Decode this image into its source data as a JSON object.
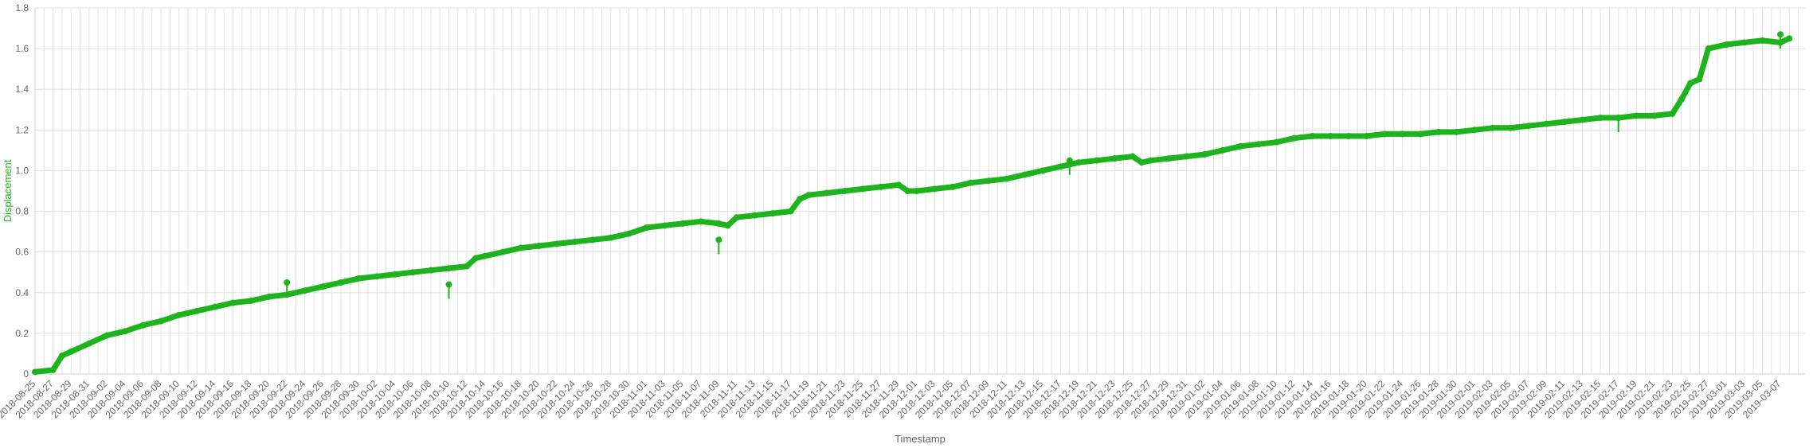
{
  "chart_data": {
    "type": "line",
    "title": "",
    "xlabel": "Timestamp",
    "ylabel": "Displacement",
    "ylim": [
      0,
      1.8
    ],
    "y_ticks": [
      "0",
      "0.2",
      "0.4",
      "0.6",
      "0.8",
      "1.0",
      "1.2",
      "1.4",
      "1.6",
      "1.8"
    ],
    "x_tick_labels": [
      "2018-08-25",
      "2018-08-27",
      "2018-08-29",
      "2018-08-31",
      "2018-09-02",
      "2018-09-04",
      "2018-09-06",
      "2018-09-08",
      "2018-09-10",
      "2018-09-12",
      "2018-09-14",
      "2018-09-16",
      "2018-09-18",
      "2018-09-20",
      "2018-09-22",
      "2018-09-24",
      "2018-09-26",
      "2018-09-28",
      "2018-09-30",
      "2018-10-02",
      "2018-10-04",
      "2018-10-06",
      "2018-10-08",
      "2018-10-10",
      "2018-10-12",
      "2018-10-14",
      "2018-10-16",
      "2018-10-18",
      "2018-10-20",
      "2018-10-22",
      "2018-10-24",
      "2018-10-26",
      "2018-10-28",
      "2018-10-30",
      "2018-11-01",
      "2018-11-03",
      "2018-11-05",
      "2018-11-07",
      "2018-11-09",
      "2018-11-11",
      "2018-11-13",
      "2018-11-15",
      "2018-11-17",
      "2018-11-19",
      "2018-11-21",
      "2018-11-23",
      "2018-11-25",
      "2018-11-27",
      "2018-11-29",
      "2018-12-01",
      "2018-12-03",
      "2018-12-05",
      "2018-12-07",
      "2018-12-09",
      "2018-12-11",
      "2018-12-13",
      "2018-12-15",
      "2018-12-17",
      "2018-12-19",
      "2018-12-21",
      "2018-12-23",
      "2018-12-25",
      "2018-12-27",
      "2018-12-29",
      "2018-12-31",
      "2019-01-02",
      "2019-01-04",
      "2019-01-06",
      "2019-01-08",
      "2019-01-10",
      "2019-01-12",
      "2019-01-14",
      "2019-01-16",
      "2019-01-18",
      "2019-01-20",
      "2019-01-22",
      "2019-01-24",
      "2019-01-26",
      "2019-01-28",
      "2019-01-30",
      "2019-02-01",
      "2019-02-03",
      "2019-02-05",
      "2019-02-07",
      "2019-02-09",
      "2019-02-11",
      "2019-02-13",
      "2019-02-15",
      "2019-02-17",
      "2019-02-19",
      "2019-02-21",
      "2019-02-23",
      "2019-02-25",
      "2019-02-27",
      "2019-03-01",
      "2019-03-03",
      "2019-03-05",
      "2019-03-07"
    ],
    "grid": true,
    "legend": "none",
    "series": [
      {
        "color": "#1db31d",
        "x": [
          "2018-08-25",
          "2018-08-27",
          "2018-08-28",
          "2018-08-29",
          "2018-08-31",
          "2018-09-02",
          "2018-09-04",
          "2018-09-06",
          "2018-09-08",
          "2018-09-10",
          "2018-09-12",
          "2018-09-14",
          "2018-09-16",
          "2018-09-18",
          "2018-09-20",
          "2018-09-22",
          "2018-09-24",
          "2018-09-26",
          "2018-09-28",
          "2018-09-30",
          "2018-10-02",
          "2018-10-04",
          "2018-10-06",
          "2018-10-08",
          "2018-10-10",
          "2018-10-12",
          "2018-10-13",
          "2018-10-14",
          "2018-10-16",
          "2018-10-18",
          "2018-10-20",
          "2018-10-22",
          "2018-10-24",
          "2018-10-26",
          "2018-10-28",
          "2018-10-30",
          "2018-11-01",
          "2018-11-03",
          "2018-11-05",
          "2018-11-07",
          "2018-11-09",
          "2018-11-10",
          "2018-11-11",
          "2018-11-13",
          "2018-11-15",
          "2018-11-17",
          "2018-11-18",
          "2018-11-19",
          "2018-11-21",
          "2018-11-23",
          "2018-11-25",
          "2018-11-27",
          "2018-11-29",
          "2018-11-30",
          "2018-12-01",
          "2018-12-03",
          "2018-12-05",
          "2018-12-07",
          "2018-12-09",
          "2018-12-11",
          "2018-12-13",
          "2018-12-15",
          "2018-12-17",
          "2018-12-19",
          "2018-12-21",
          "2018-12-23",
          "2018-12-25",
          "2018-12-26",
          "2018-12-27",
          "2018-12-29",
          "2018-12-31",
          "2019-01-02",
          "2019-01-04",
          "2019-01-06",
          "2019-01-08",
          "2019-01-10",
          "2019-01-12",
          "2019-01-14",
          "2019-01-16",
          "2019-01-18",
          "2019-01-20",
          "2019-01-22",
          "2019-01-24",
          "2019-01-26",
          "2019-01-28",
          "2019-01-30",
          "2019-02-01",
          "2019-02-03",
          "2019-02-05",
          "2019-02-07",
          "2019-02-09",
          "2019-02-11",
          "2019-02-13",
          "2019-02-15",
          "2019-02-17",
          "2019-02-19",
          "2019-02-21",
          "2019-02-23",
          "2019-02-24",
          "2019-02-25",
          "2019-02-26",
          "2019-02-27",
          "2019-03-01",
          "2019-03-03",
          "2019-03-05",
          "2019-03-07",
          "2019-03-08"
        ],
        "values": [
          0.01,
          0.02,
          0.09,
          0.11,
          0.15,
          0.19,
          0.21,
          0.24,
          0.26,
          0.29,
          0.31,
          0.33,
          0.35,
          0.36,
          0.38,
          0.39,
          0.41,
          0.43,
          0.45,
          0.47,
          0.48,
          0.49,
          0.5,
          0.51,
          0.52,
          0.53,
          0.57,
          0.58,
          0.6,
          0.62,
          0.63,
          0.64,
          0.65,
          0.66,
          0.67,
          0.69,
          0.72,
          0.73,
          0.74,
          0.75,
          0.74,
          0.73,
          0.77,
          0.78,
          0.79,
          0.8,
          0.86,
          0.88,
          0.89,
          0.9,
          0.91,
          0.92,
          0.93,
          0.9,
          0.9,
          0.91,
          0.92,
          0.94,
          0.95,
          0.96,
          0.98,
          1.0,
          1.02,
          1.04,
          1.05,
          1.06,
          1.07,
          1.04,
          1.05,
          1.06,
          1.07,
          1.08,
          1.1,
          1.12,
          1.13,
          1.14,
          1.16,
          1.17,
          1.17,
          1.17,
          1.17,
          1.18,
          1.18,
          1.18,
          1.19,
          1.19,
          1.2,
          1.21,
          1.21,
          1.22,
          1.23,
          1.24,
          1.25,
          1.26,
          1.26,
          1.27,
          1.27,
          1.28,
          1.35,
          1.43,
          1.45,
          1.6,
          1.62,
          1.63,
          1.64,
          1.63,
          1.65
        ]
      }
    ],
    "outliers": [
      {
        "x": "2018-09-22",
        "y": 0.45
      },
      {
        "x": "2018-10-10",
        "y": 0.44
      },
      {
        "x": "2018-11-09",
        "y": 0.66
      },
      {
        "x": "2018-12-18",
        "y": 1.05
      },
      {
        "x": "2019-02-17",
        "y": 1.26
      },
      {
        "x": "2019-03-07",
        "y": 1.67
      }
    ]
  }
}
